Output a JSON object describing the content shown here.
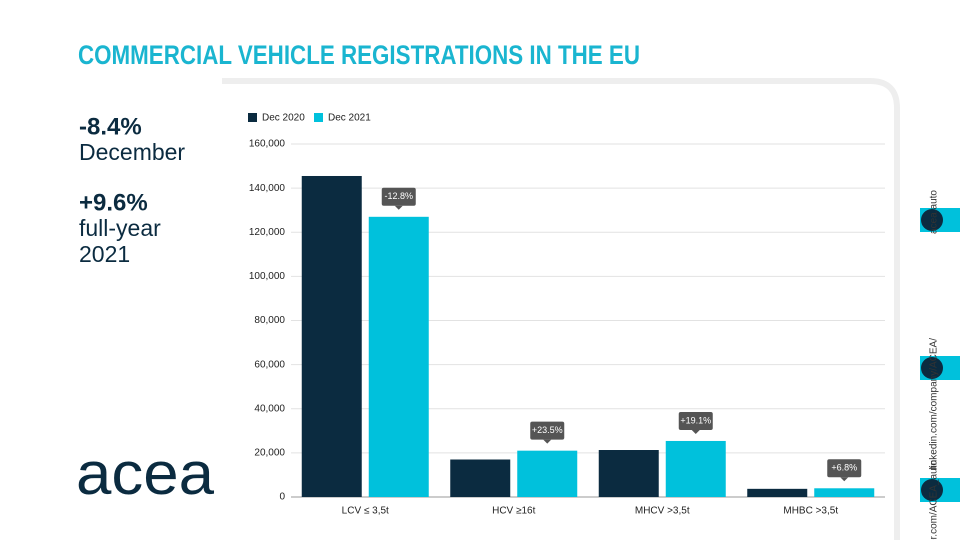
{
  "chart_data": {
    "type": "bar",
    "title": "COMMERCIAL VEHICLE REGISTRATIONS IN THE EU",
    "categories": [
      "LCV ≤ 3,5t",
      "HCV ≥16t",
      "MHCV >3,5t",
      "MHBC >3,5t"
    ],
    "series": [
      {
        "name": "Dec 2020",
        "color": "#0b2b40",
        "values": [
          145500,
          17000,
          21300,
          3700
        ]
      },
      {
        "name": "Dec 2021",
        "color": "#00c1dc",
        "values": [
          127000,
          21000,
          25400,
          3950
        ]
      }
    ],
    "annotations": [
      "-12.8%",
      "+23.5%",
      "+19.1%",
      "+6.8%"
    ],
    "ylim": [
      0,
      160000
    ],
    "yticks": [
      0,
      {
        "value": 20000,
        "label": "20,000"
      },
      {
        "value": 40000,
        "label": "40,000"
      },
      {
        "value": 60000,
        "label": "60,000"
      },
      {
        "value": 80000,
        "label": "80,000"
      },
      {
        "value": 100000,
        "label": "100,000"
      },
      {
        "value": 120000,
        "label": "120,000"
      },
      {
        "value": 140000,
        "label": "140,000"
      },
      {
        "value": 160000,
        "label": "160,000"
      }
    ],
    "grid": true,
    "legend": "top-left"
  },
  "highlights": [
    {
      "figure": "-8.4%",
      "lines": [
        "December"
      ]
    },
    {
      "figure": "+9.6%",
      "lines": [
        "full-year",
        "2021"
      ]
    }
  ],
  "logo": "acea",
  "links": [
    "acea.auto",
    "linkedin.com/company/ACEA/",
    "twitter.com/ACEA_auto"
  ]
}
